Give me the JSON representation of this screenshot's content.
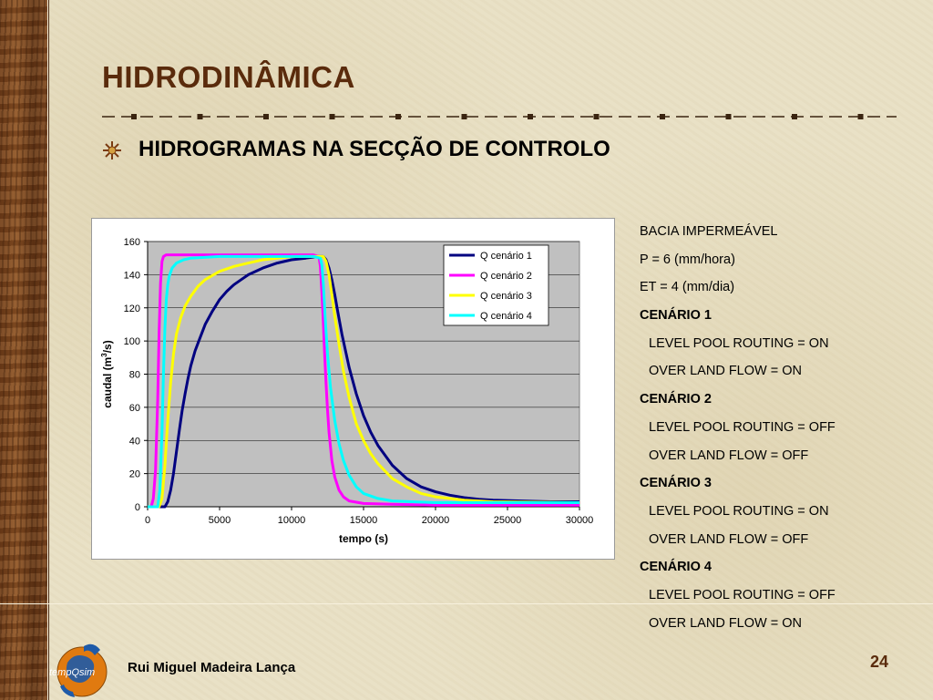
{
  "slide": {
    "title": "HIDRODINÂMICA",
    "subtitle": "HIDROGRAMAS NA SECÇÃO DE CONTROLO",
    "author": "Rui Miguel Madeira Lança",
    "page_number": "24",
    "logo_text": "tempQsim",
    "colors": {
      "title": "#5a2b0c",
      "background": "#e9e1c6",
      "wood": "#7a4520"
    }
  },
  "info_panel": [
    {
      "text": "BACIA IMPERMEÁVEL",
      "bold": false,
      "indent": false
    },
    {
      "text": "P = 6 (mm/hora)",
      "bold": false,
      "indent": false
    },
    {
      "text": "ET = 4 (mm/dia)",
      "bold": false,
      "indent": false
    },
    {
      "text": "CENÁRIO 1",
      "bold": true,
      "indent": false
    },
    {
      "text": "LEVEL POOL ROUTING = ON",
      "bold": false,
      "indent": true
    },
    {
      "text": "OVER LAND FLOW = ON",
      "bold": false,
      "indent": true
    },
    {
      "text": "CENÁRIO 2",
      "bold": true,
      "indent": false
    },
    {
      "text": "LEVEL POOL ROUTING = OFF",
      "bold": false,
      "indent": true
    },
    {
      "text": "OVER LAND FLOW = OFF",
      "bold": false,
      "indent": true
    },
    {
      "text": "CENÁRIO 3",
      "bold": true,
      "indent": false
    },
    {
      "text": "LEVEL POOL ROUTING = ON",
      "bold": false,
      "indent": true
    },
    {
      "text": "OVER LAND FLOW = OFF",
      "bold": false,
      "indent": true
    },
    {
      "text": "CENÁRIO 4",
      "bold": true,
      "indent": false
    },
    {
      "text": "LEVEL POOL ROUTING = OFF",
      "bold": false,
      "indent": true
    },
    {
      "text": "OVER LAND FLOW = ON",
      "bold": false,
      "indent": true
    }
  ],
  "chart_data": {
    "type": "line",
    "title": "",
    "xlabel": "tempo (s)",
    "ylabel_main": "caudal (m",
    "ylabel_sup": "3",
    "ylabel_tail": "/s)",
    "xlim": [
      0,
      30000
    ],
    "ylim": [
      0,
      160
    ],
    "xticks": [
      0,
      5000,
      10000,
      15000,
      20000,
      25000,
      30000
    ],
    "yticks": [
      0,
      20,
      40,
      60,
      80,
      100,
      120,
      140,
      160
    ],
    "grid": true,
    "plot_background": "#c0c0c0",
    "legend_position": "top-right",
    "series": [
      {
        "name": "Q cenário 1",
        "color": "#000080",
        "points": [
          [
            0,
            0
          ],
          [
            1200,
            0
          ],
          [
            1400,
            3
          ],
          [
            1600,
            10
          ],
          [
            1800,
            20
          ],
          [
            2000,
            33
          ],
          [
            2200,
            46
          ],
          [
            2400,
            58
          ],
          [
            2600,
            68
          ],
          [
            2800,
            77
          ],
          [
            3000,
            85
          ],
          [
            3300,
            94
          ],
          [
            3600,
            101
          ],
          [
            4000,
            110
          ],
          [
            4500,
            118
          ],
          [
            5000,
            125
          ],
          [
            5500,
            130
          ],
          [
            6000,
            134
          ],
          [
            6500,
            137
          ],
          [
            7000,
            140
          ],
          [
            8000,
            144
          ],
          [
            9000,
            147
          ],
          [
            10000,
            149
          ],
          [
            11000,
            150
          ],
          [
            11800,
            151
          ],
          [
            12200,
            151
          ],
          [
            12400,
            149
          ],
          [
            12600,
            144
          ],
          [
            12800,
            137
          ],
          [
            13000,
            128
          ],
          [
            13200,
            118
          ],
          [
            13500,
            104
          ],
          [
            14000,
            84
          ],
          [
            14500,
            68
          ],
          [
            15000,
            55
          ],
          [
            15500,
            45
          ],
          [
            16000,
            37
          ],
          [
            17000,
            25
          ],
          [
            18000,
            17
          ],
          [
            19000,
            12
          ],
          [
            20000,
            9
          ],
          [
            21000,
            7
          ],
          [
            22000,
            5.5
          ],
          [
            23000,
            4.5
          ],
          [
            24000,
            4
          ],
          [
            26000,
            3.5
          ],
          [
            28000,
            3
          ],
          [
            30000,
            3
          ]
        ]
      },
      {
        "name": "Q cenário 2",
        "color": "#ff00ff",
        "points": [
          [
            0,
            0
          ],
          [
            250,
            0
          ],
          [
            400,
            5
          ],
          [
            550,
            22
          ],
          [
            700,
            65
          ],
          [
            800,
            105
          ],
          [
            900,
            135
          ],
          [
            1000,
            148
          ],
          [
            1100,
            151
          ],
          [
            1300,
            152
          ],
          [
            2000,
            152
          ],
          [
            5000,
            152
          ],
          [
            9000,
            152
          ],
          [
            11500,
            152
          ],
          [
            11900,
            151
          ],
          [
            12000,
            145
          ],
          [
            12100,
            130
          ],
          [
            12200,
            112
          ],
          [
            12300,
            92
          ],
          [
            12400,
            74
          ],
          [
            12500,
            58
          ],
          [
            12600,
            45
          ],
          [
            12800,
            28
          ],
          [
            13000,
            18
          ],
          [
            13300,
            10
          ],
          [
            13600,
            6
          ],
          [
            14000,
            3.5
          ],
          [
            15000,
            2
          ],
          [
            17000,
            1.5
          ],
          [
            20000,
            1
          ],
          [
            30000,
            1
          ]
        ]
      },
      {
        "name": "Q cenário 3",
        "color": "#ffff00",
        "points": [
          [
            0,
            0
          ],
          [
            800,
            0
          ],
          [
            1000,
            5
          ],
          [
            1200,
            25
          ],
          [
            1400,
            52
          ],
          [
            1600,
            75
          ],
          [
            1800,
            92
          ],
          [
            2000,
            104
          ],
          [
            2300,
            114
          ],
          [
            2600,
            121
          ],
          [
            3000,
            127
          ],
          [
            3500,
            133
          ],
          [
            4000,
            137
          ],
          [
            5000,
            142
          ],
          [
            6000,
            145
          ],
          [
            7000,
            147
          ],
          [
            8000,
            149
          ],
          [
            9000,
            150
          ],
          [
            10000,
            151
          ],
          [
            11500,
            151
          ],
          [
            12200,
            151
          ],
          [
            12400,
            148
          ],
          [
            12600,
            140
          ],
          [
            12800,
            128
          ],
          [
            13000,
            115
          ],
          [
            13300,
            98
          ],
          [
            13600,
            82
          ],
          [
            14000,
            66
          ],
          [
            14500,
            50
          ],
          [
            15000,
            40
          ],
          [
            15500,
            32
          ],
          [
            16000,
            26
          ],
          [
            17000,
            17
          ],
          [
            18000,
            12
          ],
          [
            19000,
            8
          ],
          [
            20000,
            6
          ],
          [
            22000,
            4
          ],
          [
            24000,
            3
          ],
          [
            30000,
            2.5
          ]
        ]
      },
      {
        "name": "Q cenário 4",
        "color": "#00ffff",
        "points": [
          [
            0,
            0
          ],
          [
            700,
            0
          ],
          [
            850,
            10
          ],
          [
            1000,
            45
          ],
          [
            1100,
            80
          ],
          [
            1200,
            108
          ],
          [
            1300,
            125
          ],
          [
            1400,
            134
          ],
          [
            1500,
            139
          ],
          [
            1700,
            144
          ],
          [
            2000,
            147
          ],
          [
            2500,
            149
          ],
          [
            3000,
            150
          ],
          [
            5000,
            151
          ],
          [
            8000,
            151
          ],
          [
            11500,
            151
          ],
          [
            12000,
            150
          ],
          [
            12100,
            146
          ],
          [
            12200,
            135
          ],
          [
            12300,
            120
          ],
          [
            12400,
            105
          ],
          [
            12500,
            92
          ],
          [
            12700,
            72
          ],
          [
            13000,
            52
          ],
          [
            13300,
            38
          ],
          [
            13600,
            28
          ],
          [
            14000,
            19
          ],
          [
            14500,
            12
          ],
          [
            15000,
            8
          ],
          [
            16000,
            5
          ],
          [
            17000,
            3.5
          ],
          [
            20000,
            2.5
          ],
          [
            30000,
            2.5
          ]
        ]
      }
    ]
  }
}
